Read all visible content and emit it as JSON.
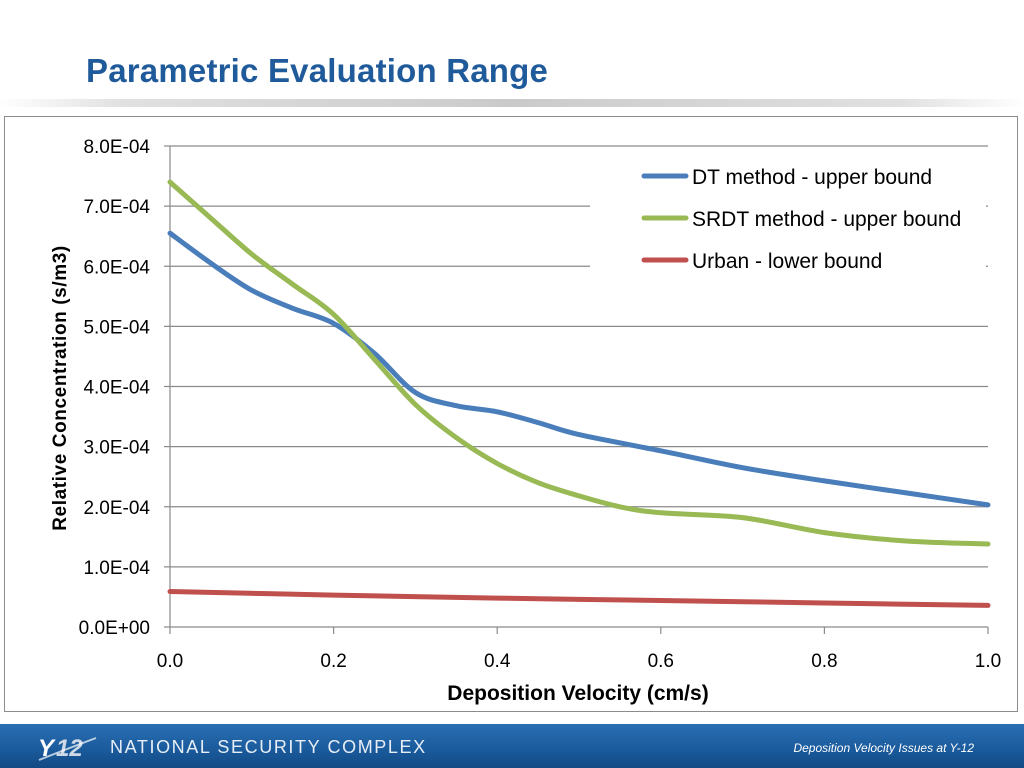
{
  "slide": {
    "title": "Parametric Evaluation Range",
    "footer_org": "NATIONAL SECURITY COMPLEX",
    "footer_caption": "Deposition Velocity Issues at Y-12",
    "logo_text": "Y-12",
    "footer_color": "#1b5c9e",
    "title_color": "#1f5a9a"
  },
  "chart_data": {
    "type": "line",
    "xlabel": "Deposition Velocity (cm/s)",
    "ylabel": "Relative Concentration (s/m3)",
    "xlim": [
      0,
      1.0
    ],
    "ylim": [
      0,
      0.0008
    ],
    "x_ticks": [
      "0.0",
      "0.2",
      "0.4",
      "0.6",
      "0.8",
      "1.0"
    ],
    "x_tick_values": [
      0,
      0.2,
      0.4,
      0.6,
      0.8,
      1.0
    ],
    "y_ticks": [
      "0.0E+00",
      "1.0E-04",
      "2.0E-04",
      "3.0E-04",
      "4.0E-04",
      "5.0E-04",
      "6.0E-04",
      "7.0E-04",
      "8.0E-04"
    ],
    "y_tick_values": [
      0,
      0.0001,
      0.0002,
      0.0003,
      0.0004,
      0.0005,
      0.0006,
      0.0007,
      0.0008
    ],
    "grid": true,
    "legend_position": "top-right",
    "series": [
      {
        "name": "DT method - upper bound",
        "color": "#4a7ebb",
        "x": [
          0.0,
          0.05,
          0.1,
          0.15,
          0.2,
          0.25,
          0.3,
          0.35,
          0.4,
          0.45,
          0.5,
          0.6,
          0.7,
          0.8,
          0.9,
          1.0
        ],
        "y": [
          0.000655,
          0.000605,
          0.00056,
          0.00053,
          0.000505,
          0.000455,
          0.00039,
          0.000368,
          0.000358,
          0.00034,
          0.00032,
          0.000293,
          0.000265,
          0.000243,
          0.000223,
          0.000203
        ]
      },
      {
        "name": "SRDT method - upper bound",
        "color": "#98b954",
        "x": [
          0.0,
          0.05,
          0.1,
          0.15,
          0.2,
          0.25,
          0.3,
          0.35,
          0.4,
          0.45,
          0.5,
          0.55,
          0.6,
          0.7,
          0.8,
          0.9,
          1.0
        ],
        "y": [
          0.00074,
          0.00068,
          0.00062,
          0.00057,
          0.00052,
          0.000445,
          0.00037,
          0.000315,
          0.000272,
          0.00024,
          0.000218,
          0.0002,
          0.00019,
          0.000182,
          0.000157,
          0.000143,
          0.000138
        ]
      },
      {
        "name": "Urban - lower bound",
        "color": "#c0504d",
        "x": [
          0.0,
          0.2,
          0.4,
          0.6,
          0.8,
          1.0
        ],
        "y": [
          5.9e-05,
          5.3e-05,
          4.8e-05,
          4.4e-05,
          4e-05,
          3.6e-05
        ]
      }
    ]
  }
}
